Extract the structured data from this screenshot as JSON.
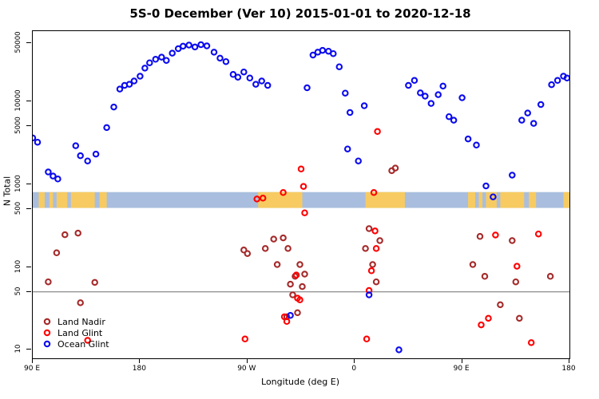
{
  "chart_data": {
    "type": "scatter",
    "title": "5S-0 December (Ver 10)   2015-01-01 to 2020-12-18",
    "xlabel": "Longitude (deg E)",
    "ylabel": "N Total",
    "x_domain": [
      90,
      540
    ],
    "x_ticks": [
      {
        "value": 90,
        "label": "90 E"
      },
      {
        "value": 180,
        "label": "180"
      },
      {
        "value": 270,
        "label": "90 W"
      },
      {
        "value": 360,
        "label": "0"
      },
      {
        "value": 450,
        "label": "90 E"
      },
      {
        "value": 540,
        "label": "180"
      }
    ],
    "y_scale": "log",
    "y_domain": [
      7.9,
      70000
    ],
    "y_ticks": [
      {
        "value": 10,
        "label": "10"
      },
      {
        "value": 50,
        "label": "50"
      },
      {
        "value": 100,
        "label": "100"
      },
      {
        "value": 500,
        "label": "500"
      },
      {
        "value": 1000,
        "label": "1000"
      },
      {
        "value": 5000,
        "label": "5000"
      },
      {
        "value": 10000,
        "label": "10000"
      },
      {
        "value": 50000,
        "label": "50000"
      }
    ],
    "grid": "off",
    "legend_position": "bottom-left",
    "reference_line": {
      "y": 50,
      "color": "#6e6e6e"
    },
    "map_band": {
      "n_range": [
        515,
        800
      ],
      "ocean_color": "#a9bede",
      "land_color": "#f7cb62",
      "land_segments_lon": [
        [
          95,
          100
        ],
        [
          104,
          107
        ],
        [
          110,
          119
        ],
        [
          122,
          142
        ],
        [
          146,
          152
        ],
        [
          279,
          316
        ],
        [
          369,
          402
        ],
        [
          455,
          461
        ],
        [
          464,
          467
        ],
        [
          470,
          479
        ],
        [
          482,
          502
        ],
        [
          506,
          512
        ],
        [
          535,
          540
        ]
      ]
    },
    "legend": {
      "items": [
        {
          "label": "Land Nadir",
          "color": "#a52a2a"
        },
        {
          "label": "Land Glint",
          "color": "#ff0000"
        },
        {
          "label": "Ocean Glint",
          "color": "#0b0bee"
        }
      ]
    },
    "series": [
      {
        "name": "Land Nadir",
        "color": "#a52a2a",
        "points": [
          [
            103,
            66
          ],
          [
            110,
            148
          ],
          [
            117,
            245
          ],
          [
            128,
            256
          ],
          [
            130,
            37
          ],
          [
            142,
            65
          ],
          [
            267,
            160
          ],
          [
            270,
            145
          ],
          [
            285,
            167
          ],
          [
            292,
            217
          ],
          [
            295,
            107
          ],
          [
            300,
            224
          ],
          [
            303,
            25
          ],
          [
            304,
            167
          ],
          [
            306,
            62
          ],
          [
            308,
            46
          ],
          [
            310,
            77
          ],
          [
            312,
            28
          ],
          [
            314,
            107
          ],
          [
            316,
            58
          ],
          [
            318,
            82
          ],
          [
            369,
            167
          ],
          [
            372,
            290
          ],
          [
            375,
            107
          ],
          [
            378,
            66
          ],
          [
            381,
            208
          ],
          [
            391,
            1450
          ],
          [
            394,
            1560
          ],
          [
            459,
            107
          ],
          [
            465,
            233
          ],
          [
            469,
            77
          ],
          [
            482,
            35
          ],
          [
            492,
            208
          ],
          [
            495,
            66
          ],
          [
            498,
            24
          ],
          [
            524,
            77
          ]
        ]
      },
      {
        "name": "Land Glint",
        "color": "#ff0000",
        "points": [
          [
            136,
            13
          ],
          [
            268,
            13.5
          ],
          [
            278,
            660
          ],
          [
            283,
            676
          ],
          [
            300,
            790
          ],
          [
            301,
            25
          ],
          [
            303,
            22
          ],
          [
            311,
            80
          ],
          [
            312,
            42
          ],
          [
            314,
            40
          ],
          [
            315,
            1520
          ],
          [
            317,
            937
          ],
          [
            318,
            450
          ],
          [
            370,
            13.5
          ],
          [
            372,
            52
          ],
          [
            374,
            90
          ],
          [
            376,
            790
          ],
          [
            377,
            272
          ],
          [
            378,
            167
          ],
          [
            379,
            4300
          ],
          [
            466,
            20
          ],
          [
            472,
            24
          ],
          [
            478,
            243
          ],
          [
            496,
            102
          ],
          [
            508,
            12.2
          ],
          [
            514,
            250
          ]
        ]
      },
      {
        "name": "Ocean Glint",
        "color": "#0b0bee",
        "points": [
          [
            90,
            3600
          ],
          [
            94,
            3200
          ],
          [
            103,
            1400
          ],
          [
            107,
            1250
          ],
          [
            111,
            1150
          ],
          [
            126,
            2900
          ],
          [
            130,
            2200
          ],
          [
            136,
            1900
          ],
          [
            143,
            2300
          ],
          [
            152,
            4800
          ],
          [
            158,
            8500
          ],
          [
            163,
            14000
          ],
          [
            167,
            15500
          ],
          [
            171,
            16000
          ],
          [
            175,
            17500
          ],
          [
            180,
            20000
          ],
          [
            184,
            25000
          ],
          [
            188,
            29000
          ],
          [
            193,
            32000
          ],
          [
            198,
            34000
          ],
          [
            202,
            31000
          ],
          [
            207,
            38000
          ],
          [
            212,
            43000
          ],
          [
            216,
            46000
          ],
          [
            221,
            47500
          ],
          [
            226,
            45000
          ],
          [
            231,
            48000
          ],
          [
            236,
            46500
          ],
          [
            242,
            39000
          ],
          [
            247,
            33000
          ],
          [
            252,
            30000
          ],
          [
            258,
            21000
          ],
          [
            262,
            19500
          ],
          [
            267,
            22500
          ],
          [
            272,
            19000
          ],
          [
            277,
            16000
          ],
          [
            282,
            17500
          ],
          [
            287,
            15500
          ],
          [
            306,
            26
          ],
          [
            320,
            14500
          ],
          [
            325,
            36000
          ],
          [
            329,
            39000
          ],
          [
            333,
            41000
          ],
          [
            338,
            40000
          ],
          [
            342,
            37500
          ],
          [
            347,
            26000
          ],
          [
            352,
            12500
          ],
          [
            354,
            2650
          ],
          [
            356,
            7300
          ],
          [
            363,
            1900
          ],
          [
            368,
            8800
          ],
          [
            372,
            46
          ],
          [
            397,
            10
          ],
          [
            405,
            15500
          ],
          [
            410,
            17800
          ],
          [
            415,
            12600
          ],
          [
            419,
            11500
          ],
          [
            424,
            9400
          ],
          [
            430,
            12000
          ],
          [
            434,
            15200
          ],
          [
            439,
            6500
          ],
          [
            443,
            5900
          ],
          [
            450,
            11000
          ],
          [
            455,
            3500
          ],
          [
            462,
            2950
          ],
          [
            470,
            950
          ],
          [
            476,
            700
          ],
          [
            492,
            1280
          ],
          [
            500,
            5900
          ],
          [
            505,
            7200
          ],
          [
            510,
            5400
          ],
          [
            516,
            9100
          ],
          [
            525,
            15800
          ],
          [
            530,
            17800
          ],
          [
            535,
            20000
          ],
          [
            538,
            19000
          ]
        ]
      }
    ]
  }
}
